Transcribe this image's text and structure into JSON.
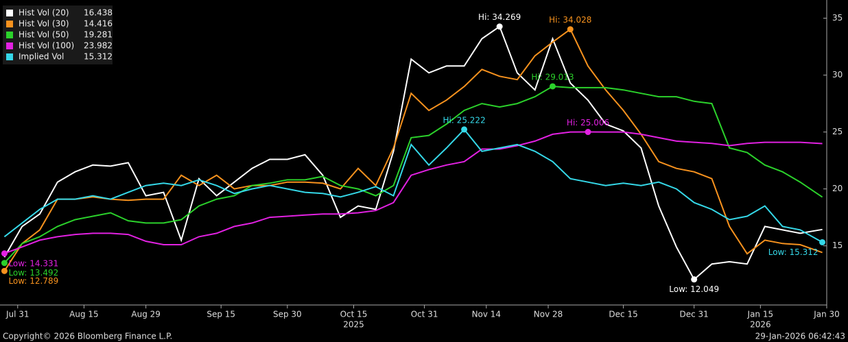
{
  "chart_data": {
    "type": "line",
    "x": [
      "2025-07-28",
      "2025-08-01",
      "2025-08-05",
      "2025-08-09",
      "2025-08-13",
      "2025-08-17",
      "2025-08-21",
      "2025-08-25",
      "2025-08-29",
      "2025-09-02",
      "2025-09-06",
      "2025-09-10",
      "2025-09-14",
      "2025-09-18",
      "2025-09-22",
      "2025-09-26",
      "2025-09-30",
      "2025-10-04",
      "2025-10-08",
      "2025-10-12",
      "2025-10-16",
      "2025-10-20",
      "2025-10-24",
      "2025-10-28",
      "2025-11-01",
      "2025-11-05",
      "2025-11-09",
      "2025-11-13",
      "2025-11-17",
      "2025-11-21",
      "2025-11-25",
      "2025-11-29",
      "2025-12-03",
      "2025-12-07",
      "2025-12-11",
      "2025-12-15",
      "2025-12-19",
      "2025-12-23",
      "2025-12-27",
      "2025-12-31",
      "2026-01-04",
      "2026-01-08",
      "2026-01-12",
      "2026-01-16",
      "2026-01-20",
      "2026-01-24",
      "2026-01-29"
    ],
    "xlim": [
      "2025-07-27",
      "2026-01-30"
    ],
    "xticks": [
      {
        "value": "2025-07-31",
        "label": "Jul 31"
      },
      {
        "value": "2025-08-15",
        "label": "Aug 15"
      },
      {
        "value": "2025-08-29",
        "label": "Aug 29"
      },
      {
        "value": "2025-09-15",
        "label": "Sep 15"
      },
      {
        "value": "2025-09-30",
        "label": "Sep 30"
      },
      {
        "value": "2025-10-15",
        "label": "Oct 15"
      },
      {
        "value": "2025-10-31",
        "label": "Oct 31"
      },
      {
        "value": "2025-11-14",
        "label": "Nov 14"
      },
      {
        "value": "2025-11-28",
        "label": "Nov 28"
      },
      {
        "value": "2025-12-15",
        "label": "Dec 15"
      },
      {
        "value": "2025-12-31",
        "label": "Dec 31"
      },
      {
        "value": "2026-01-15",
        "label": "Jan 15"
      },
      {
        "value": "2026-01-30",
        "label": "Jan 30"
      }
    ],
    "year_labels": [
      {
        "value": "2025-10-15",
        "label": "2025"
      },
      {
        "value": "2026-01-15",
        "label": "2026"
      }
    ],
    "ylim": [
      9.8,
      36.6
    ],
    "yticks": [
      15,
      20,
      25,
      30,
      35
    ],
    "legend": "top-left",
    "series": [
      {
        "name": "Hist Vol (20)",
        "color": "#ffffff",
        "hi_label": "Hi: 34.269",
        "low_label": "Low: 12.049",
        "values": [
          14.0,
          16.7,
          17.8,
          20.6,
          21.5,
          22.1,
          22.0,
          22.3,
          19.4,
          19.7,
          15.5,
          20.9,
          19.4,
          20.6,
          21.8,
          22.6,
          22.6,
          23.0,
          21.2,
          17.5,
          18.5,
          18.2,
          23.3,
          31.4,
          30.2,
          30.8,
          30.8,
          33.2,
          34.269,
          30.2,
          28.7,
          33.2,
          29.3,
          27.8,
          25.7,
          25.1,
          23.6,
          18.5,
          14.9,
          12.049,
          13.4,
          13.6,
          13.4,
          16.7,
          16.4,
          16.1,
          16.438
        ]
      },
      {
        "name": "Hist Vol (30)",
        "color": "#f7921e",
        "hi_label": "Hi: 34.028",
        "low_label": "Low: 12.789",
        "values": [
          12.789,
          15.2,
          16.4,
          19.1,
          19.1,
          19.3,
          19.1,
          19.0,
          19.1,
          19.1,
          21.2,
          20.3,
          21.2,
          20.0,
          20.3,
          20.3,
          20.6,
          20.6,
          20.5,
          20.0,
          21.8,
          20.3,
          23.6,
          28.4,
          26.9,
          27.8,
          29.0,
          30.5,
          29.9,
          29.6,
          31.7,
          32.9,
          34.028,
          30.8,
          28.7,
          26.9,
          24.8,
          22.4,
          21.8,
          21.5,
          20.9,
          16.7,
          14.3,
          15.5,
          15.2,
          15.1,
          14.416
        ]
      },
      {
        "name": "Hist Vol (50)",
        "color": "#2bd12b",
        "hi_label": "Hi: 29.013",
        "low_label": "Low: 13.492",
        "values": [
          13.492,
          15.2,
          15.8,
          16.7,
          17.3,
          17.6,
          17.9,
          17.2,
          17.0,
          17.0,
          17.3,
          18.5,
          19.1,
          19.4,
          20.3,
          20.5,
          20.8,
          20.8,
          21.1,
          20.3,
          20.0,
          19.4,
          20.3,
          24.5,
          24.7,
          25.7,
          26.9,
          27.5,
          27.2,
          27.5,
          28.1,
          29.013,
          28.9,
          28.9,
          28.9,
          28.7,
          28.4,
          28.1,
          28.1,
          27.7,
          27.5,
          23.6,
          23.2,
          22.1,
          21.5,
          20.6,
          19.281
        ]
      },
      {
        "name": "Hist Vol (100)",
        "color": "#e221e2",
        "hi_label": "Hi: 25.006",
        "low_label": "Low: 14.331",
        "values": [
          14.331,
          14.9,
          15.5,
          15.8,
          16.0,
          16.1,
          16.1,
          16.0,
          15.4,
          15.1,
          15.1,
          15.8,
          16.1,
          16.7,
          17.0,
          17.5,
          17.6,
          17.7,
          17.8,
          17.8,
          17.9,
          18.1,
          18.8,
          21.2,
          21.7,
          22.1,
          22.4,
          23.5,
          23.5,
          23.8,
          24.2,
          24.8,
          25.0,
          25.006,
          25.0,
          25.0,
          24.8,
          24.5,
          24.2,
          24.1,
          24.0,
          23.8,
          24.0,
          24.1,
          24.1,
          24.1,
          23.982
        ]
      },
      {
        "name": "Implied Vol",
        "color": "#35d8e8",
        "hi_label": "Hi: 25.222",
        "low_label": "Low: 15.312",
        "values": [
          15.8,
          17.0,
          18.2,
          19.1,
          19.1,
          19.4,
          19.1,
          19.7,
          20.3,
          20.5,
          20.3,
          20.8,
          20.3,
          19.6,
          20.0,
          20.3,
          20.0,
          19.7,
          19.6,
          19.3,
          19.7,
          20.2,
          19.4,
          23.9,
          22.1,
          23.6,
          25.222,
          23.3,
          23.6,
          23.9,
          23.3,
          22.4,
          20.9,
          20.6,
          20.3,
          20.5,
          20.3,
          20.6,
          20.0,
          18.8,
          18.2,
          17.3,
          17.6,
          18.5,
          16.7,
          16.4,
          15.312
        ]
      }
    ]
  },
  "footer": {
    "copyright": "Copyright© 2026 Bloomberg Finance L.P.",
    "timestamp": "29-Jan-2026 06:42:43"
  }
}
